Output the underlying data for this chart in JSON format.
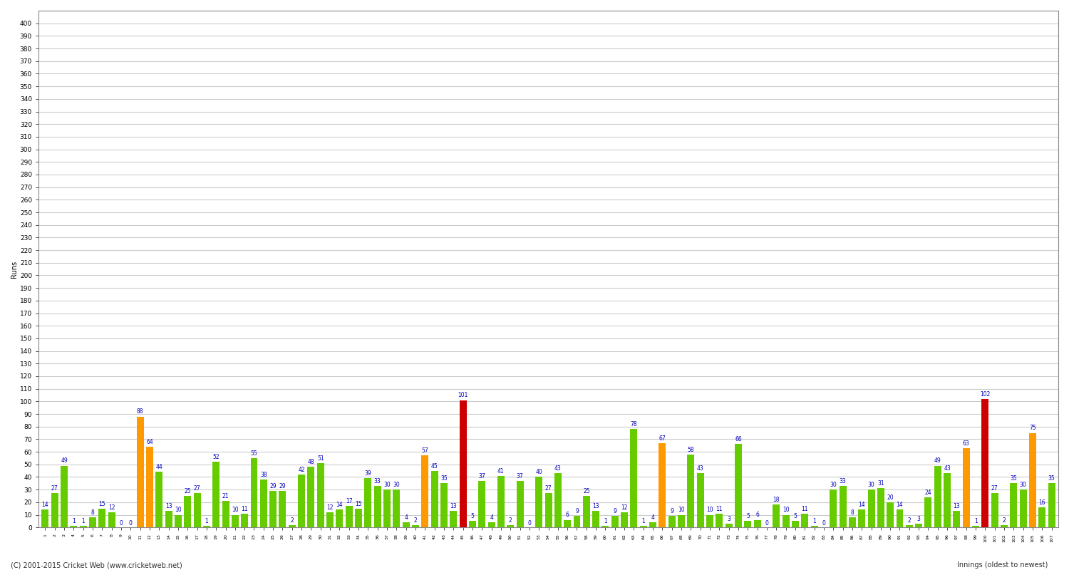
{
  "ylabel": "Runs",
  "xlabel_bottom": "Innings (oldest to newest)",
  "copyright": "(C) 2001-2015 Cricket Web (www.cricketweb.net)",
  "ylim": [
    0,
    410
  ],
  "yticks": [
    0,
    10,
    20,
    30,
    40,
    50,
    60,
    70,
    80,
    90,
    100,
    110,
    120,
    130,
    140,
    150,
    160,
    170,
    180,
    190,
    200,
    210,
    220,
    230,
    240,
    250,
    260,
    270,
    280,
    290,
    300,
    310,
    320,
    330,
    340,
    350,
    360,
    370,
    380,
    390,
    400
  ],
  "background_color": "#ffffff",
  "grid_color": "#cccccc",
  "green": "#66cc00",
  "orange": "#ff9900",
  "red": "#cc0000",
  "innings": [
    {
      "inn": 1,
      "runs": 14,
      "color": "green"
    },
    {
      "inn": 2,
      "runs": 27,
      "color": "green"
    },
    {
      "inn": 3,
      "runs": 49,
      "color": "green"
    },
    {
      "inn": 4,
      "runs": 1,
      "color": "green"
    },
    {
      "inn": 5,
      "runs": 1,
      "color": "green"
    },
    {
      "inn": 6,
      "runs": 8,
      "color": "green"
    },
    {
      "inn": 7,
      "runs": 15,
      "color": "green"
    },
    {
      "inn": 8,
      "runs": 12,
      "color": "green"
    },
    {
      "inn": 9,
      "runs": 0,
      "color": "green"
    },
    {
      "inn": 10,
      "runs": 0,
      "color": "green"
    },
    {
      "inn": 11,
      "runs": 88,
      "color": "orange"
    },
    {
      "inn": 12,
      "runs": 64,
      "color": "orange"
    },
    {
      "inn": 13,
      "runs": 44,
      "color": "green"
    },
    {
      "inn": 14,
      "runs": 13,
      "color": "green"
    },
    {
      "inn": 15,
      "runs": 10,
      "color": "green"
    },
    {
      "inn": 16,
      "runs": 25,
      "color": "green"
    },
    {
      "inn": 17,
      "runs": 27,
      "color": "green"
    },
    {
      "inn": 18,
      "runs": 1,
      "color": "green"
    },
    {
      "inn": 19,
      "runs": 52,
      "color": "green"
    },
    {
      "inn": 20,
      "runs": 21,
      "color": "green"
    },
    {
      "inn": 21,
      "runs": 10,
      "color": "green"
    },
    {
      "inn": 22,
      "runs": 11,
      "color": "green"
    },
    {
      "inn": 23,
      "runs": 55,
      "color": "green"
    },
    {
      "inn": 24,
      "runs": 38,
      "color": "green"
    },
    {
      "inn": 25,
      "runs": 29,
      "color": "green"
    },
    {
      "inn": 26,
      "runs": 29,
      "color": "green"
    },
    {
      "inn": 27,
      "runs": 2,
      "color": "green"
    },
    {
      "inn": 28,
      "runs": 42,
      "color": "green"
    },
    {
      "inn": 29,
      "runs": 48,
      "color": "green"
    },
    {
      "inn": 30,
      "runs": 51,
      "color": "green"
    },
    {
      "inn": 31,
      "runs": 12,
      "color": "green"
    },
    {
      "inn": 32,
      "runs": 14,
      "color": "green"
    },
    {
      "inn": 33,
      "runs": 17,
      "color": "green"
    },
    {
      "inn": 34,
      "runs": 15,
      "color": "green"
    },
    {
      "inn": 35,
      "runs": 39,
      "color": "green"
    },
    {
      "inn": 36,
      "runs": 33,
      "color": "green"
    },
    {
      "inn": 37,
      "runs": 30,
      "color": "green"
    },
    {
      "inn": 38,
      "runs": 30,
      "color": "green"
    },
    {
      "inn": 39,
      "runs": 4,
      "color": "green"
    },
    {
      "inn": 40,
      "runs": 2,
      "color": "green"
    },
    {
      "inn": 41,
      "runs": 57,
      "color": "orange"
    },
    {
      "inn": 42,
      "runs": 45,
      "color": "green"
    },
    {
      "inn": 43,
      "runs": 35,
      "color": "green"
    },
    {
      "inn": 44,
      "runs": 13,
      "color": "green"
    },
    {
      "inn": 45,
      "runs": 101,
      "color": "red"
    },
    {
      "inn": 46,
      "runs": 5,
      "color": "green"
    },
    {
      "inn": 47,
      "runs": 37,
      "color": "green"
    },
    {
      "inn": 48,
      "runs": 4,
      "color": "green"
    },
    {
      "inn": 49,
      "runs": 41,
      "color": "green"
    },
    {
      "inn": 50,
      "runs": 2,
      "color": "green"
    },
    {
      "inn": 51,
      "runs": 37,
      "color": "green"
    },
    {
      "inn": 52,
      "runs": 0,
      "color": "green"
    },
    {
      "inn": 53,
      "runs": 40,
      "color": "green"
    },
    {
      "inn": 54,
      "runs": 27,
      "color": "green"
    },
    {
      "inn": 55,
      "runs": 43,
      "color": "green"
    },
    {
      "inn": 56,
      "runs": 6,
      "color": "green"
    },
    {
      "inn": 57,
      "runs": 9,
      "color": "green"
    },
    {
      "inn": 58,
      "runs": 25,
      "color": "green"
    },
    {
      "inn": 59,
      "runs": 13,
      "color": "green"
    },
    {
      "inn": 60,
      "runs": 1,
      "color": "green"
    },
    {
      "inn": 61,
      "runs": 9,
      "color": "green"
    },
    {
      "inn": 62,
      "runs": 12,
      "color": "green"
    },
    {
      "inn": 63,
      "runs": 78,
      "color": "green"
    },
    {
      "inn": 64,
      "runs": 1,
      "color": "green"
    },
    {
      "inn": 65,
      "runs": 4,
      "color": "green"
    },
    {
      "inn": 66,
      "runs": 67,
      "color": "orange"
    },
    {
      "inn": 67,
      "runs": 9,
      "color": "green"
    },
    {
      "inn": 68,
      "runs": 10,
      "color": "green"
    },
    {
      "inn": 69,
      "runs": 58,
      "color": "green"
    },
    {
      "inn": 70,
      "runs": 43,
      "color": "green"
    },
    {
      "inn": 71,
      "runs": 10,
      "color": "green"
    },
    {
      "inn": 72,
      "runs": 11,
      "color": "green"
    },
    {
      "inn": 73,
      "runs": 3,
      "color": "green"
    },
    {
      "inn": 74,
      "runs": 66,
      "color": "green"
    },
    {
      "inn": 75,
      "runs": 5,
      "color": "green"
    },
    {
      "inn": 76,
      "runs": 6,
      "color": "green"
    },
    {
      "inn": 77,
      "runs": 0,
      "color": "green"
    },
    {
      "inn": 78,
      "runs": 18,
      "color": "green"
    },
    {
      "inn": 79,
      "runs": 10,
      "color": "green"
    },
    {
      "inn": 80,
      "runs": 5,
      "color": "green"
    },
    {
      "inn": 81,
      "runs": 11,
      "color": "green"
    },
    {
      "inn": 82,
      "runs": 1,
      "color": "green"
    },
    {
      "inn": 83,
      "runs": 0,
      "color": "green"
    },
    {
      "inn": 84,
      "runs": 30,
      "color": "green"
    },
    {
      "inn": 85,
      "runs": 33,
      "color": "green"
    },
    {
      "inn": 86,
      "runs": 8,
      "color": "green"
    },
    {
      "inn": 87,
      "runs": 14,
      "color": "green"
    },
    {
      "inn": 88,
      "runs": 30,
      "color": "green"
    },
    {
      "inn": 89,
      "runs": 31,
      "color": "green"
    },
    {
      "inn": 90,
      "runs": 20,
      "color": "green"
    },
    {
      "inn": 91,
      "runs": 14,
      "color": "green"
    },
    {
      "inn": 92,
      "runs": 2,
      "color": "green"
    },
    {
      "inn": 93,
      "runs": 3,
      "color": "green"
    },
    {
      "inn": 94,
      "runs": 24,
      "color": "green"
    },
    {
      "inn": 95,
      "runs": 49,
      "color": "green"
    },
    {
      "inn": 96,
      "runs": 43,
      "color": "green"
    },
    {
      "inn": 97,
      "runs": 13,
      "color": "green"
    },
    {
      "inn": 98,
      "runs": 63,
      "color": "orange"
    },
    {
      "inn": 99,
      "runs": 1,
      "color": "green"
    },
    {
      "inn": 100,
      "runs": 102,
      "color": "red"
    },
    {
      "inn": 101,
      "runs": 27,
      "color": "green"
    },
    {
      "inn": 102,
      "runs": 2,
      "color": "green"
    },
    {
      "inn": 103,
      "runs": 35,
      "color": "green"
    },
    {
      "inn": 104,
      "runs": 30,
      "color": "green"
    },
    {
      "inn": 105,
      "runs": 75,
      "color": "orange"
    },
    {
      "inn": 106,
      "runs": 16,
      "color": "green"
    },
    {
      "inn": 107,
      "runs": 35,
      "color": "green"
    }
  ],
  "bar_width": 0.75,
  "label_fontsize": 5.5,
  "tick_fontsize": 6.5,
  "ylabel_fontsize": 7,
  "xtick_fontsize": 4.5
}
